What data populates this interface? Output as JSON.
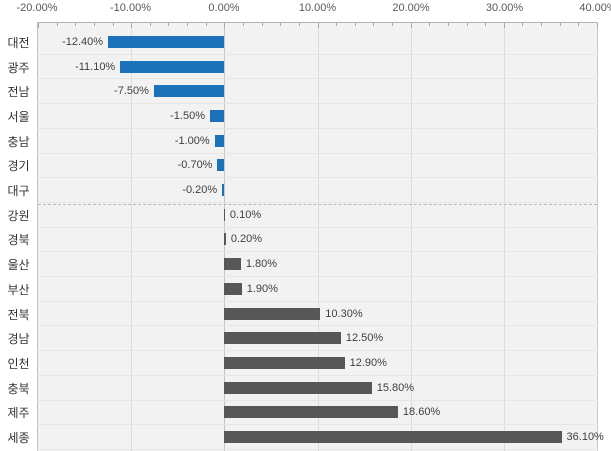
{
  "chart_data": {
    "type": "bar",
    "orientation": "horizontal",
    "categories": [
      "대전",
      "광주",
      "전남",
      "서울",
      "충남",
      "경기",
      "대구",
      "강원",
      "경북",
      "울산",
      "부산",
      "전북",
      "경남",
      "인천",
      "충북",
      "제주",
      "세종"
    ],
    "values": [
      -12.4,
      -11.1,
      -7.5,
      -1.5,
      -1.0,
      -0.7,
      -0.2,
      0.1,
      0.2,
      1.8,
      1.9,
      10.3,
      12.5,
      12.9,
      15.8,
      18.6,
      36.1
    ],
    "value_labels": [
      "-12.40%",
      "-11.10%",
      "-7.50%",
      "-1.50%",
      "-1.00%",
      "-0.70%",
      "-0.20%",
      "0.10%",
      "0.20%",
      "1.80%",
      "1.90%",
      "10.30%",
      "12.50%",
      "12.90%",
      "15.80%",
      "18.60%",
      "36.10%"
    ],
    "x_axis": {
      "position": "top",
      "min": -20,
      "max": 40,
      "tick_values": [
        -20,
        -10,
        0,
        10,
        20,
        30,
        40
      ],
      "tick_labels": [
        "-20.00%",
        "-10.00%",
        "0.00%",
        "10.00%",
        "20.00%",
        "30.00%",
        "40.00%"
      ],
      "minor_tick_step": 2
    },
    "divider_after_index": 6,
    "grid": true,
    "legend": "none",
    "colors": {
      "negative_bar": "#1b72b8",
      "positive_bar": "#575757",
      "plot_background": "#f2f2f2",
      "gridline": "#dcdcdc",
      "axis_text": "#595959",
      "label_text": "#3f3f3f"
    }
  }
}
